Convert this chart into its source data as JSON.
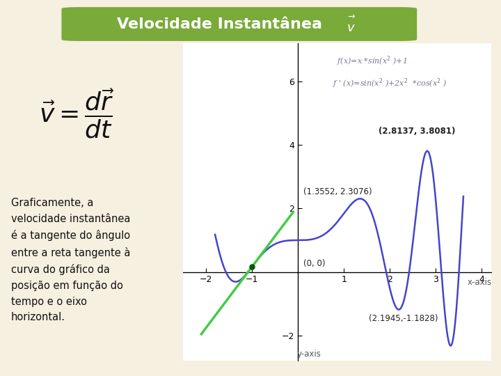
{
  "title": "Velocidade Instantânea",
  "background_color": "#f5f0e0",
  "title_bg_color": "#7aaa3a",
  "title_text_color": "#ffffff",
  "left_panel_bg": "#f5f0e0",
  "plot_bg": "#ffffff",
  "curve_color": "#4444cc",
  "tangent_color": "#44cc44",
  "tangent_dot_color": "#006600",
  "xlim": [
    -2.5,
    4.2
  ],
  "ylim": [
    -2.8,
    7.2
  ],
  "xticks": [
    -2,
    -1,
    1,
    2,
    3,
    4
  ],
  "yticks": [
    -2,
    2,
    4,
    6
  ],
  "xlabel": "x-axis",
  "ylabel": "y-axis",
  "func_label1": "f(x)=x *sin(x$^2$ )+1",
  "func_label2": "f ' (x)=sin(x$^2$ )+2x$^2$  *cos(x$^2$ )",
  "annotation_00": "(0, 0)",
  "annotation_135": "(1.3552, 2.3076)",
  "annotation_281": "(2.8137, 3.8081)",
  "annotation_min": "(2.1945,-1.1828)",
  "curve_xmin": -1.8,
  "curve_xmax": 3.6,
  "tangent_xmin": -2.1,
  "tangent_xmax": -0.1,
  "tangent_x0": -1.0
}
